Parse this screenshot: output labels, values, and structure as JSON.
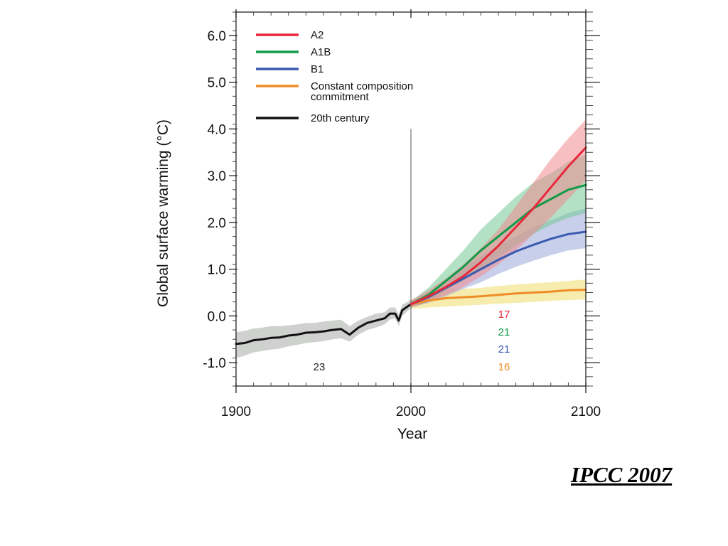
{
  "chart_data": {
    "type": "line",
    "title": "",
    "xlabel": "Year",
    "ylabel": "Global surface warming (°C)",
    "xlim": [
      1900,
      2100
    ],
    "ylim": [
      -1.5,
      6.5
    ],
    "x_ticks": [
      "1900",
      "2000",
      "2100"
    ],
    "y_ticks": [
      "6.0",
      "5.0",
      "4.0",
      "3.0",
      "2.0",
      "1.0",
      "0.0",
      "-1.0"
    ],
    "grid": false,
    "legend_position": "top-left",
    "reference_line_x": 2000,
    "series": [
      {
        "name": "A2",
        "color": "#e8283a",
        "band_color": "#f08a8e",
        "x": [
          2000,
          2010,
          2020,
          2030,
          2040,
          2050,
          2060,
          2070,
          2080,
          2090,
          2100
        ],
        "values": [
          0.25,
          0.42,
          0.62,
          0.85,
          1.15,
          1.5,
          1.9,
          2.3,
          2.75,
          3.2,
          3.6
        ],
        "lower": [
          0.18,
          0.3,
          0.45,
          0.62,
          0.85,
          1.1,
          1.4,
          1.75,
          2.1,
          2.5,
          2.9
        ],
        "upper": [
          0.32,
          0.55,
          0.8,
          1.1,
          1.45,
          1.85,
          2.35,
          2.85,
          3.35,
          3.8,
          4.2
        ],
        "count_label": "17"
      },
      {
        "name": "A1B",
        "color": "#109a48",
        "band_color": "#72c896",
        "x": [
          2000,
          2010,
          2020,
          2030,
          2040,
          2050,
          2060,
          2070,
          2080,
          2090,
          2100
        ],
        "values": [
          0.25,
          0.45,
          0.75,
          1.05,
          1.4,
          1.7,
          2.0,
          2.3,
          2.5,
          2.7,
          2.8
        ],
        "lower": [
          0.18,
          0.3,
          0.55,
          0.75,
          1.0,
          1.25,
          1.5,
          1.75,
          1.95,
          2.1,
          2.2
        ],
        "upper": [
          0.32,
          0.6,
          1.0,
          1.4,
          1.85,
          2.2,
          2.55,
          2.85,
          3.05,
          3.3,
          3.45
        ],
        "count_label": "21"
      },
      {
        "name": "B1",
        "color": "#3a5ab0",
        "band_color": "#9aa8d8",
        "x": [
          2000,
          2010,
          2020,
          2030,
          2040,
          2050,
          2060,
          2070,
          2080,
          2090,
          2100
        ],
        "values": [
          0.25,
          0.4,
          0.6,
          0.8,
          1.0,
          1.2,
          1.38,
          1.52,
          1.65,
          1.75,
          1.8
        ],
        "lower": [
          0.18,
          0.28,
          0.42,
          0.58,
          0.72,
          0.9,
          1.05,
          1.18,
          1.3,
          1.4,
          1.45
        ],
        "upper": [
          0.32,
          0.52,
          0.78,
          1.02,
          1.28,
          1.5,
          1.7,
          1.9,
          2.05,
          2.2,
          2.3
        ],
        "count_label": "21"
      },
      {
        "name": "Constant composition commitment",
        "label_lines": [
          "Constant composition",
          "commitment"
        ],
        "color": "#f08c28",
        "band_color": "#ecdc6c",
        "x": [
          2000,
          2010,
          2020,
          2030,
          2040,
          2050,
          2060,
          2070,
          2080,
          2090,
          2100
        ],
        "values": [
          0.25,
          0.33,
          0.38,
          0.4,
          0.42,
          0.45,
          0.48,
          0.5,
          0.52,
          0.55,
          0.56
        ],
        "lower": [
          0.15,
          0.18,
          0.2,
          0.22,
          0.24,
          0.26,
          0.28,
          0.3,
          0.32,
          0.34,
          0.35
        ],
        "upper": [
          0.35,
          0.48,
          0.55,
          0.58,
          0.6,
          0.64,
          0.67,
          0.7,
          0.72,
          0.75,
          0.78
        ],
        "count_label": "16"
      },
      {
        "name": "20th century",
        "color": "#111111",
        "band_color": "#a8aca8",
        "x": [
          1900,
          1905,
          1910,
          1915,
          1920,
          1925,
          1930,
          1935,
          1940,
          1945,
          1950,
          1955,
          1960,
          1965,
          1970,
          1975,
          1980,
          1985,
          1988,
          1991,
          1993,
          1995,
          1998,
          2000
        ],
        "values": [
          -0.6,
          -0.58,
          -0.52,
          -0.5,
          -0.47,
          -0.46,
          -0.42,
          -0.4,
          -0.36,
          -0.35,
          -0.33,
          -0.3,
          -0.28,
          -0.4,
          -0.25,
          -0.15,
          -0.1,
          -0.05,
          0.05,
          0.05,
          -0.1,
          0.12,
          0.2,
          0.25
        ],
        "lower": [
          -0.9,
          -0.85,
          -0.78,
          -0.75,
          -0.72,
          -0.7,
          -0.65,
          -0.62,
          -0.58,
          -0.56,
          -0.54,
          -0.5,
          -0.48,
          -0.55,
          -0.4,
          -0.3,
          -0.25,
          -0.18,
          -0.08,
          -0.05,
          -0.22,
          0.0,
          0.1,
          0.15
        ],
        "upper": [
          -0.35,
          -0.32,
          -0.27,
          -0.25,
          -0.22,
          -0.22,
          -0.2,
          -0.18,
          -0.15,
          -0.15,
          -0.12,
          -0.1,
          -0.08,
          -0.22,
          -0.1,
          -0.02,
          0.05,
          0.08,
          0.18,
          0.18,
          0.03,
          0.24,
          0.3,
          0.35
        ],
        "count_label": "23"
      }
    ]
  },
  "credit": "IPCC 2007"
}
